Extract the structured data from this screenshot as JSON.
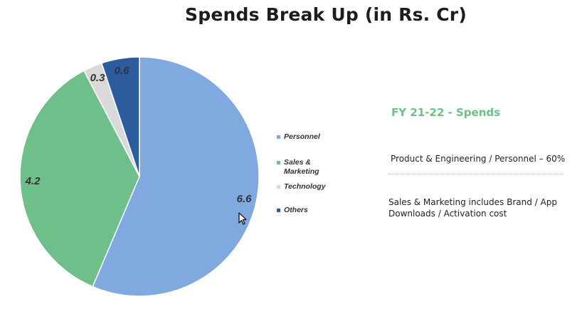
{
  "slide": {
    "title": "Spends Break Up (in Rs. Cr)"
  },
  "chart_data": {
    "type": "pie",
    "title": "Spends Break Up (in Rs. Cr)",
    "slices": [
      {
        "name": "Personnel",
        "value": 6.6,
        "label": "6.6",
        "color": "#7fa9df"
      },
      {
        "name": "Sales & Marketing",
        "value": 4.2,
        "label": "4.2",
        "color": "#6fbf8a"
      },
      {
        "name": "Technology",
        "value": 0.3,
        "label": "0.3",
        "color": "#d9d9d9"
      },
      {
        "name": "Others",
        "value": 0.6,
        "label": "0.6",
        "color": "#2d5c9e"
      }
    ],
    "legend_placement": "right",
    "start_angle_deg": 0,
    "direction": "clockwise"
  },
  "legend": {
    "items": [
      {
        "label": "Personnel",
        "color": "#7fa9df"
      },
      {
        "label": "Sales & Marketing",
        "color": "#6fbf8a"
      },
      {
        "label": "Technology",
        "color": "#d9d9d9"
      },
      {
        "label": "Others",
        "color": "#2d5c9e"
      }
    ]
  },
  "panel": {
    "heading": "FY 21-22 - Spends",
    "heading_color": "#6fbf8a",
    "note1": "Product & Engineering / Personnel – 60%",
    "note2": "Sales & Marketing includes Brand / App Downloads / Activation cost"
  },
  "cursor": {
    "icon": "mouse-pointer-icon"
  }
}
